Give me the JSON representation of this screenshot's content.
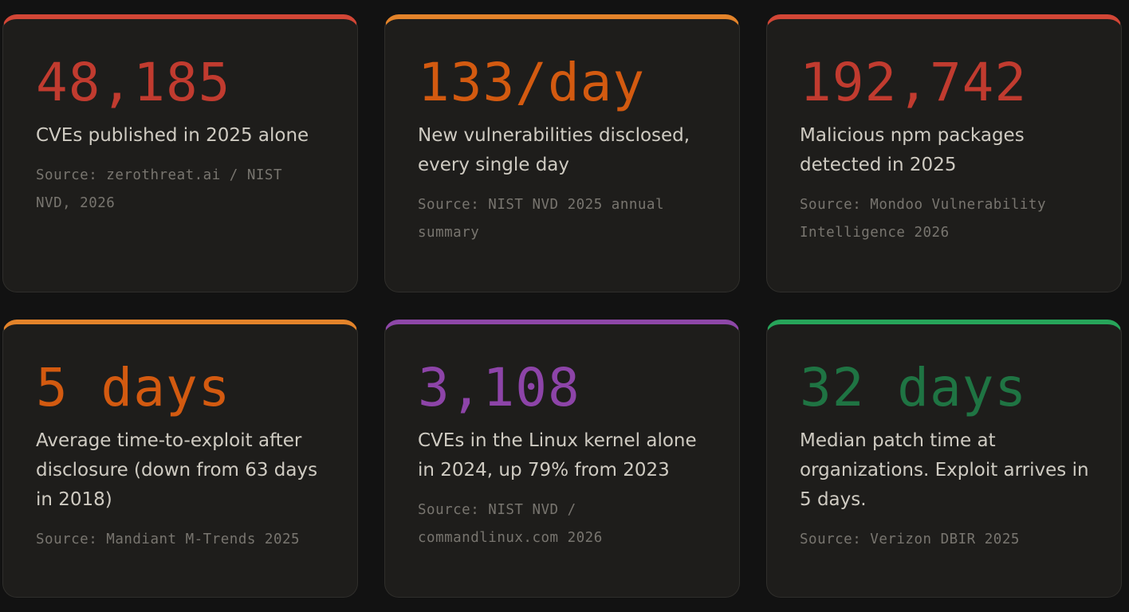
{
  "cards": [
    {
      "stat": "48,185",
      "description": "CVEs published in 2025 alone",
      "source": "Source: zerothreat.ai / NIST NVD, 2026"
    },
    {
      "stat": "133/day",
      "description": "New vulnerabilities disclosed, every single day",
      "source": "Source: NIST NVD 2025 annual summary"
    },
    {
      "stat": "192,742",
      "description": "Malicious npm packages detected in 2025",
      "source": "Source: Mondoo Vulnerability Intelligence 2026"
    },
    {
      "stat": "5 days",
      "description": "Average time-to-exploit after disclosure (down from 63 days in 2018)",
      "source": "Source: Mandiant M-Trends 2025"
    },
    {
      "stat": "3,108",
      "description": "CVEs in the Linux kernel alone in 2024, up 79% from 2023",
      "source": "Source: NIST NVD / commandlinux.com 2026"
    },
    {
      "stat": "32 days",
      "description": "Median patch time at organizations. Exploit arrives in 5 days.",
      "source": "Source: Verizon DBIR 2025"
    }
  ]
}
